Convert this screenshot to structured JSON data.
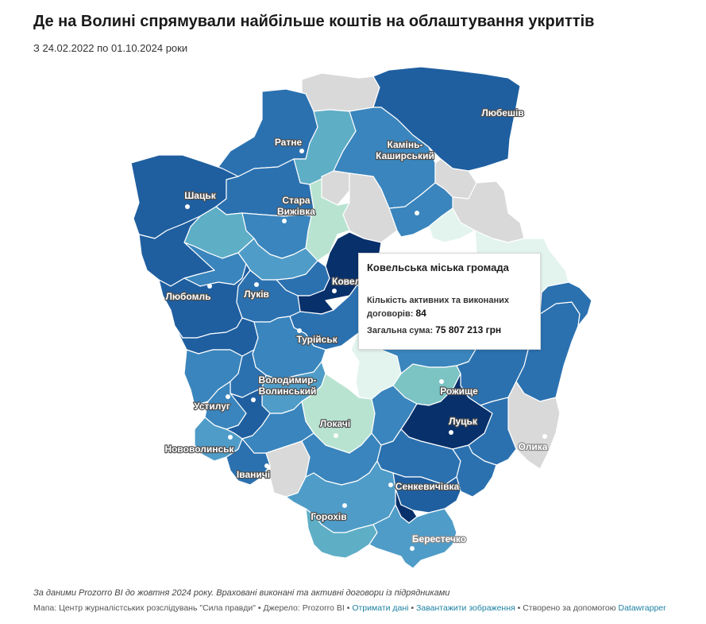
{
  "header": {
    "title": "Де на Волині спрямували найбільше коштів на облаштування укриттів",
    "subtitle": "З 24.02.2022 по 01.10.2024 роки"
  },
  "map": {
    "colors": {
      "darkest": "#08306b",
      "dark": "#1f5fa0",
      "mid_dark": "#2b71b0",
      "mid": "#3a85bd",
      "mid_light": "#4f9cc8",
      "light": "#5eaec6",
      "lighter": "#7cc3c4",
      "mint": "#b8e3d1",
      "pale": "#e3f4ee",
      "no_data": "#d9d9d9"
    },
    "places": [
      {
        "name": "Любешів"
      },
      {
        "name": "Ратне"
      },
      {
        "name": "Камінь-",
        "name2": "Каширський"
      },
      {
        "name": "Шацьк"
      },
      {
        "name": "Стара",
        "name2": "Вижівка"
      },
      {
        "name": "Ковель"
      },
      {
        "name": "Любомль"
      },
      {
        "name": "Луків"
      },
      {
        "name": "Турійськ"
      },
      {
        "name": "Володимир-",
        "name2": "Волинський"
      },
      {
        "name": "Рожище"
      },
      {
        "name": "Устилуг"
      },
      {
        "name": "Луцьк"
      },
      {
        "name": "Локачі"
      },
      {
        "name": "Нововолинськ"
      },
      {
        "name": "Олика"
      },
      {
        "name": "Іваничі"
      },
      {
        "name": "Сенкевичівка"
      },
      {
        "name": "Горохів"
      },
      {
        "name": "Берестечко"
      }
    ]
  },
  "tooltip": {
    "title": "Ковельська міська громада",
    "count_label": "Кількість активних та виконаних",
    "count_label2": "договорів:",
    "count_value": "84",
    "sum_label": "Загальна сума:",
    "sum_value": "75 807 213 грн"
  },
  "footer": {
    "note": "За даними Prozorro BI до жовтня 2024 року. Враховані виконані та активні договори із підрядниками",
    "credits": "Мапа: Центр журналістських розслідувань \"Сила правди\" • Джерело: Prozorro BI • ",
    "link_data": "Отримати дані",
    "sep1": " • ",
    "link_image": "Завантажити зображення",
    "sep2": " • Створено за допомогою ",
    "link_tool": "Datawrapper"
  }
}
